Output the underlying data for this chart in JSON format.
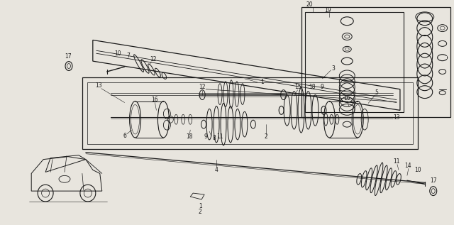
{
  "bg_color": "#e8e5de",
  "line_color": "#1a1a1a",
  "figsize": [
    6.4,
    3.17
  ],
  "dpi": 100,
  "lw": 0.7
}
